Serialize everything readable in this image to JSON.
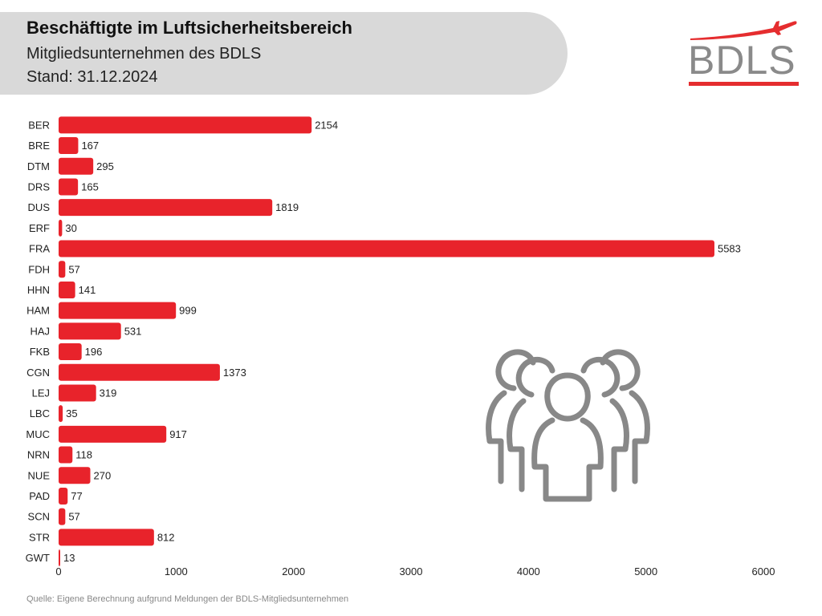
{
  "header": {
    "title": "Beschäftigte im Luftsicherheitsbereich",
    "subtitle": "Mitgliedsunternehmen des BDLS",
    "stand": "Stand: 31.12.2024"
  },
  "logo": {
    "text": "BDLS",
    "color": "#e52d2f",
    "text_color": "#8a8a8a",
    "icon": "airplane-icon"
  },
  "source": "Quelle: Eigene Berechnung aufgrund Meldungen der BDLS-Mitgliedsunternehmen",
  "decoration": {
    "icon": "people-group-icon",
    "color": "#888888"
  },
  "chart_data": {
    "type": "bar",
    "orientation": "horizontal",
    "categories": [
      "BER",
      "BRE",
      "DTM",
      "DRS",
      "DUS",
      "ERF",
      "FRA",
      "FDH",
      "HHN",
      "HAM",
      "HAJ",
      "FKB",
      "CGN",
      "LEJ",
      "LBC",
      "MUC",
      "NRN",
      "NUE",
      "PAD",
      "SCN",
      "STR",
      "GWT"
    ],
    "values": [
      2154,
      167,
      295,
      165,
      1819,
      30,
      5583,
      57,
      141,
      999,
      531,
      196,
      1373,
      319,
      35,
      917,
      118,
      270,
      77,
      57,
      812,
      13
    ],
    "xlim": [
      0,
      6000
    ],
    "xticks": [
      0,
      1000,
      2000,
      3000,
      4000,
      5000,
      6000
    ],
    "bar_color": "#e8232b",
    "grid": false,
    "data_labels": true
  }
}
